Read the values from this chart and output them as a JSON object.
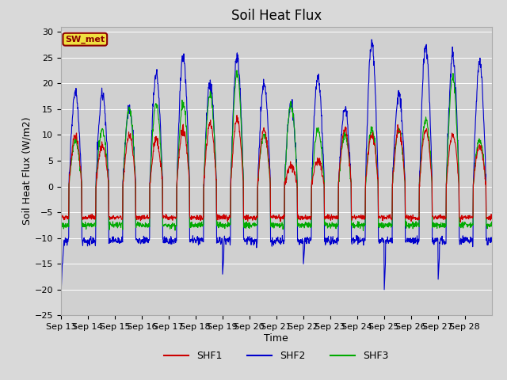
{
  "title": "Soil Heat Flux",
  "xlabel": "Time",
  "ylabel": "Soil Heat Flux (W/m2)",
  "ylim": [
    -25,
    31
  ],
  "yticks": [
    -25,
    -20,
    -15,
    -10,
    -5,
    0,
    5,
    10,
    15,
    20,
    25,
    30
  ],
  "x_labels": [
    "Sep 13",
    "Sep 14",
    "Sep 15",
    "Sep 16",
    "Sep 17",
    "Sep 18",
    "Sep 19",
    "Sep 20",
    "Sep 21",
    "Sep 22",
    "Sep 23",
    "Sep 24",
    "Sep 25",
    "Sep 26",
    "Sep 27",
    "Sep 28"
  ],
  "colors": {
    "SHF1": "#cc0000",
    "SHF2": "#0000cc",
    "SHF3": "#00aa00"
  },
  "legend_label": "SW_met",
  "background_color": "#d9d9d9",
  "plot_bg_color": "#d0d0d0",
  "grid_color": "#ffffff",
  "title_fontsize": 12,
  "axis_fontsize": 9,
  "tick_fontsize": 8,
  "shf1_day_amps": [
    10,
    8,
    10,
    9,
    11,
    12,
    13,
    11,
    4,
    5,
    11,
    10,
    11,
    11,
    10,
    8
  ],
  "shf2_day_amps": [
    18,
    18,
    15,
    22,
    25,
    20,
    25,
    20,
    16,
    21,
    15,
    28,
    18,
    27,
    25,
    24
  ],
  "shf3_day_amps": [
    9,
    11,
    15,
    16,
    16,
    18,
    22,
    10,
    16,
    11,
    10,
    11,
    11,
    13,
    21,
    9
  ],
  "shf1_night": -6.0,
  "shf2_night": -10.5,
  "shf3_night": -7.5,
  "n_days": 16,
  "pts_per_day": 96
}
